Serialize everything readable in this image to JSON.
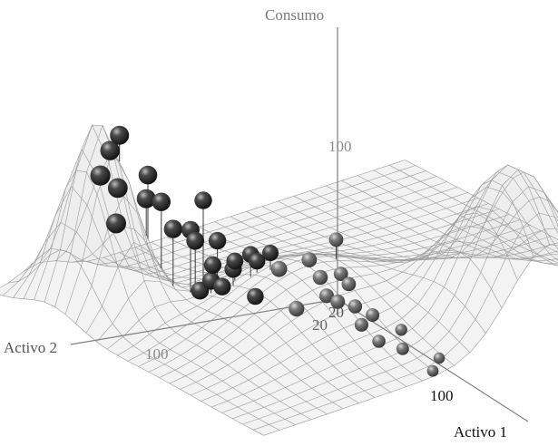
{
  "chart_data": {
    "type": "scatter",
    "subtype": "3d-scatter-with-surface",
    "title": "",
    "axes": {
      "z": {
        "label": "Consumo",
        "tick_labels": [
          "100"
        ]
      },
      "x": {
        "label": "Activo 1",
        "tick_labels": [
          "20",
          "100"
        ]
      },
      "y": {
        "label": "Activo 2",
        "tick_labels": [
          "20",
          "100"
        ]
      }
    },
    "surface": {
      "present": true,
      "shape": "double-hump",
      "grid": true
    },
    "points": [
      {
        "a1": 22,
        "a2": 85,
        "c": 125
      },
      {
        "a1": 22,
        "a2": 88,
        "c": 118
      },
      {
        "a1": 26,
        "a2": 94,
        "c": 110
      },
      {
        "a1": 30,
        "a2": 82,
        "c": 110
      },
      {
        "a1": 28,
        "a2": 90,
        "c": 104
      },
      {
        "a1": 32,
        "a2": 84,
        "c": 100
      },
      {
        "a1": 33,
        "a2": 80,
        "c": 98
      },
      {
        "a1": 40,
        "a2": 72,
        "c": 102
      },
      {
        "a1": 30,
        "a2": 92,
        "c": 88
      },
      {
        "a1": 38,
        "a2": 80,
        "c": 88
      },
      {
        "a1": 40,
        "a2": 76,
        "c": 88
      },
      {
        "a1": 46,
        "a2": 72,
        "c": 86
      },
      {
        "a1": 42,
        "a2": 76,
        "c": 84
      },
      {
        "a1": 52,
        "a2": 66,
        "c": 82
      },
      {
        "a1": 55,
        "a2": 62,
        "c": 84
      },
      {
        "a1": 60,
        "a2": 45,
        "c": 90
      },
      {
        "a1": 58,
        "a2": 52,
        "c": 80
      },
      {
        "a1": 52,
        "a2": 64,
        "c": 78
      },
      {
        "a1": 56,
        "a2": 60,
        "c": 76
      },
      {
        "a1": 48,
        "a2": 68,
        "c": 76
      },
      {
        "a1": 50,
        "a2": 70,
        "c": 74
      },
      {
        "a1": 44,
        "a2": 72,
        "c": 72
      },
      {
        "a1": 62,
        "a2": 45,
        "c": 74
      },
      {
        "a1": 60,
        "a2": 50,
        "c": 72
      },
      {
        "a1": 64,
        "a2": 44,
        "c": 70
      },
      {
        "a1": 46,
        "a2": 74,
        "c": 66
      },
      {
        "a1": 48,
        "a2": 72,
        "c": 64
      },
      {
        "a1": 54,
        "a2": 66,
        "c": 62
      },
      {
        "a1": 44,
        "a2": 76,
        "c": 60
      },
      {
        "a1": 60,
        "a2": 48,
        "c": 62
      },
      {
        "a1": 62,
        "a2": 46,
        "c": 60
      },
      {
        "a1": 64,
        "a2": 42,
        "c": 58
      },
      {
        "a1": 58,
        "a2": 56,
        "c": 56
      },
      {
        "a1": 66,
        "a2": 38,
        "c": 54
      },
      {
        "a1": 64,
        "a2": 40,
        "c": 48
      },
      {
        "a1": 66,
        "a2": 36,
        "c": 40
      },
      {
        "a1": 68,
        "a2": 30,
        "c": 36
      },
      {
        "a1": 62,
        "a2": 26,
        "c": 40
      },
      {
        "a1": 70,
        "a2": 20,
        "c": 30
      },
      {
        "a1": 70,
        "a2": 22,
        "c": 24
      }
    ]
  }
}
